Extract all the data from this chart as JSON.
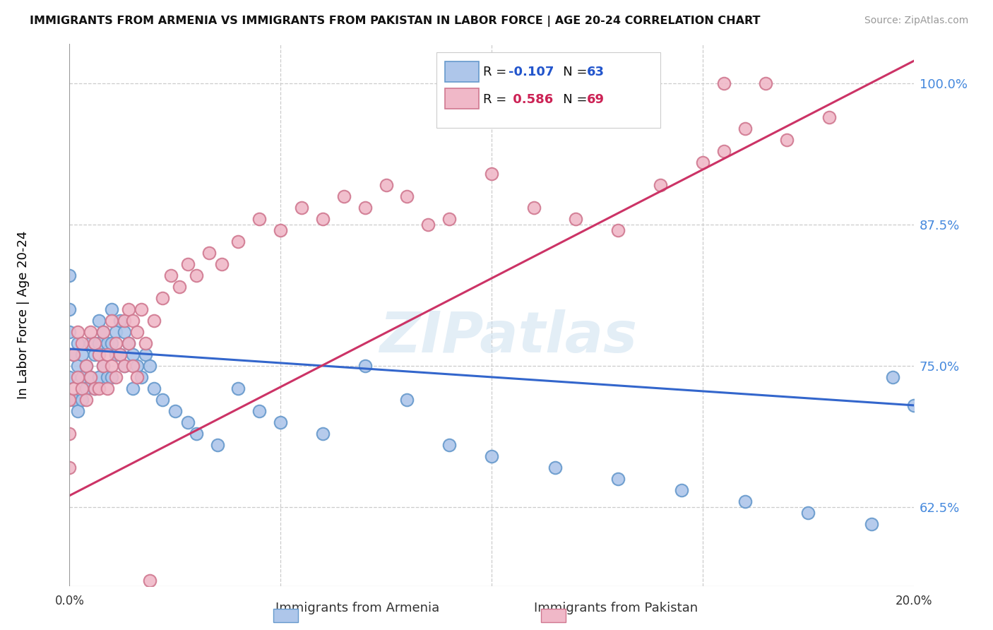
{
  "title": "IMMIGRANTS FROM ARMENIA VS IMMIGRANTS FROM PAKISTAN IN LABOR FORCE | AGE 20-24 CORRELATION CHART",
  "source": "Source: ZipAtlas.com",
  "ylabel": "In Labor Force | Age 20-24",
  "yticks": [
    0.625,
    0.75,
    0.875,
    1.0
  ],
  "ytick_labels": [
    "62.5%",
    "75.0%",
    "87.5%",
    "100.0%"
  ],
  "xlim": [
    0.0,
    0.2
  ],
  "ylim": [
    0.555,
    1.035
  ],
  "watermark": "ZIPatlas",
  "armenia_color": "#aec6ea",
  "armenia_edge": "#6699cc",
  "pakistan_color": "#f0b8c8",
  "pakistan_edge": "#d07890",
  "armenia_line_color": "#3366cc",
  "pakistan_line_color": "#cc3366",
  "armenia_R": -0.107,
  "pakistan_R": 0.586,
  "armenia_N": 63,
  "pakistan_N": 69,
  "armenia_line_x0": 0.0,
  "armenia_line_y0": 0.765,
  "armenia_line_x1": 0.2,
  "armenia_line_y1": 0.715,
  "pakistan_line_x0": 0.0,
  "pakistan_line_y0": 0.635,
  "pakistan_line_x1": 0.2,
  "pakistan_line_y1": 1.02,
  "arm_x": [
    0.0,
    0.0,
    0.0,
    0.0,
    0.001,
    0.001,
    0.002,
    0.002,
    0.002,
    0.003,
    0.003,
    0.003,
    0.004,
    0.004,
    0.005,
    0.005,
    0.006,
    0.006,
    0.007,
    0.007,
    0.007,
    0.008,
    0.008,
    0.009,
    0.009,
    0.01,
    0.01,
    0.01,
    0.011,
    0.011,
    0.012,
    0.012,
    0.013,
    0.013,
    0.014,
    0.015,
    0.015,
    0.016,
    0.017,
    0.018,
    0.019,
    0.02,
    0.022,
    0.025,
    0.028,
    0.03,
    0.035,
    0.04,
    0.045,
    0.05,
    0.06,
    0.07,
    0.08,
    0.09,
    0.1,
    0.115,
    0.13,
    0.145,
    0.16,
    0.175,
    0.19,
    0.195,
    0.2
  ],
  "arm_y": [
    0.83,
    0.8,
    0.78,
    0.74,
    0.76,
    0.72,
    0.77,
    0.75,
    0.71,
    0.76,
    0.74,
    0.72,
    0.75,
    0.73,
    0.77,
    0.74,
    0.76,
    0.73,
    0.79,
    0.77,
    0.74,
    0.78,
    0.75,
    0.77,
    0.74,
    0.8,
    0.77,
    0.74,
    0.78,
    0.76,
    0.79,
    0.76,
    0.78,
    0.75,
    0.77,
    0.76,
    0.73,
    0.75,
    0.74,
    0.76,
    0.75,
    0.73,
    0.72,
    0.71,
    0.7,
    0.69,
    0.68,
    0.73,
    0.71,
    0.7,
    0.69,
    0.75,
    0.72,
    0.68,
    0.67,
    0.66,
    0.65,
    0.64,
    0.63,
    0.62,
    0.61,
    0.74,
    0.715
  ],
  "pak_x": [
    0.0,
    0.0,
    0.0,
    0.001,
    0.001,
    0.002,
    0.002,
    0.003,
    0.003,
    0.004,
    0.004,
    0.005,
    0.005,
    0.006,
    0.006,
    0.007,
    0.007,
    0.008,
    0.008,
    0.009,
    0.009,
    0.01,
    0.01,
    0.011,
    0.011,
    0.012,
    0.013,
    0.013,
    0.014,
    0.014,
    0.015,
    0.015,
    0.016,
    0.016,
    0.017,
    0.018,
    0.019,
    0.02,
    0.022,
    0.024,
    0.026,
    0.028,
    0.03,
    0.033,
    0.036,
    0.04,
    0.045,
    0.05,
    0.055,
    0.06,
    0.065,
    0.07,
    0.075,
    0.08,
    0.085,
    0.09,
    0.1,
    0.11,
    0.12,
    0.13,
    0.135,
    0.14,
    0.15,
    0.155,
    0.155,
    0.16,
    0.165,
    0.17,
    0.18
  ],
  "pak_y": [
    0.72,
    0.69,
    0.66,
    0.76,
    0.73,
    0.78,
    0.74,
    0.77,
    0.73,
    0.75,
    0.72,
    0.78,
    0.74,
    0.77,
    0.73,
    0.76,
    0.73,
    0.78,
    0.75,
    0.76,
    0.73,
    0.79,
    0.75,
    0.77,
    0.74,
    0.76,
    0.79,
    0.75,
    0.8,
    0.77,
    0.79,
    0.75,
    0.78,
    0.74,
    0.8,
    0.77,
    0.56,
    0.79,
    0.81,
    0.83,
    0.82,
    0.84,
    0.83,
    0.85,
    0.84,
    0.86,
    0.88,
    0.87,
    0.89,
    0.88,
    0.9,
    0.89,
    0.91,
    0.9,
    0.875,
    0.88,
    0.92,
    0.89,
    0.88,
    0.87,
    1.0,
    0.91,
    0.93,
    1.0,
    0.94,
    0.96,
    1.0,
    0.95,
    0.97
  ]
}
